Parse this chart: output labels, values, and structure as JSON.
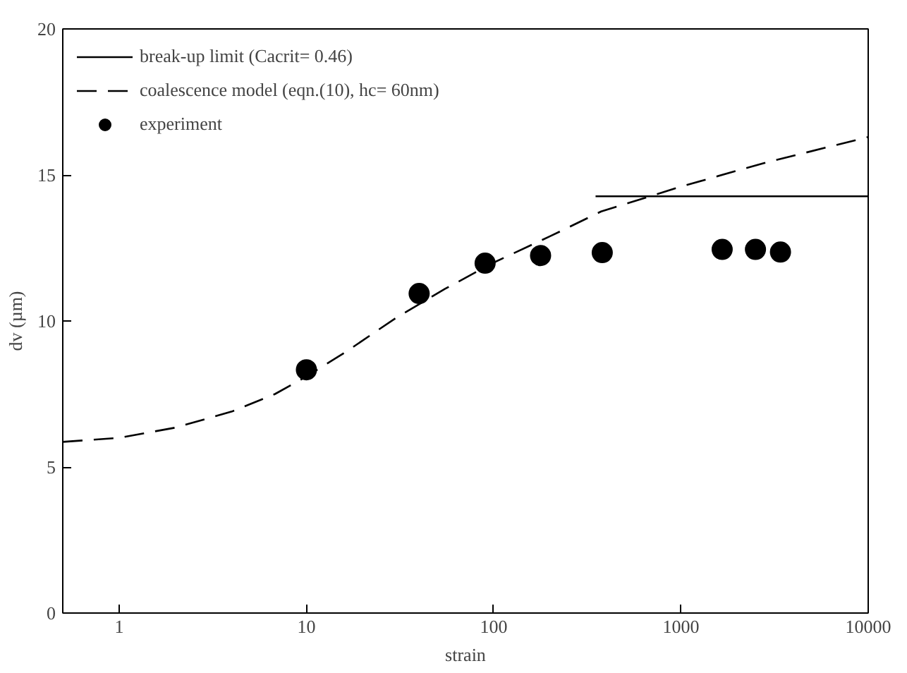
{
  "chart_data": {
    "type": "scatter",
    "xlabel": "strain",
    "ylabel": "dv (µm)",
    "log": "x",
    "xlim": [
      0.5,
      10000
    ],
    "ylim": [
      0,
      20
    ],
    "xticks": [
      1,
      10,
      100,
      1000,
      10000
    ],
    "yticks": [
      0,
      5,
      10,
      15,
      20
    ],
    "grid": false,
    "legend": "top left",
    "series": [
      {
        "name": "break-up limit (Cacrit= 0.46)",
        "type": "line",
        "line_style": "solid",
        "color": "#000000",
        "x": [
          350,
          10000
        ],
        "values": [
          14.27,
          14.27
        ]
      },
      {
        "name": "coalescence model (eqn.(10), hc= 60nm)",
        "type": "line",
        "line_style": "dashed",
        "color": "#000000",
        "x": [
          0.5,
          1,
          2,
          4,
          6.8,
          10,
          16.4,
          30,
          55,
          100,
          200,
          375,
          1000,
          2750,
          10000
        ],
        "values": [
          5.86,
          6.0,
          6.35,
          6.9,
          7.5,
          8.1,
          8.96,
          10.1,
          11.1,
          12.0,
          12.9,
          13.75,
          14.6,
          15.4,
          16.3
        ]
      },
      {
        "name": "experiment",
        "marker": "circle",
        "color": "#000000",
        "x": [
          10,
          40,
          90,
          178,
          380,
          1660,
          2500,
          3400
        ],
        "values": [
          8.33,
          10.94,
          11.98,
          12.24,
          12.34,
          12.45,
          12.45,
          12.36
        ]
      }
    ]
  }
}
